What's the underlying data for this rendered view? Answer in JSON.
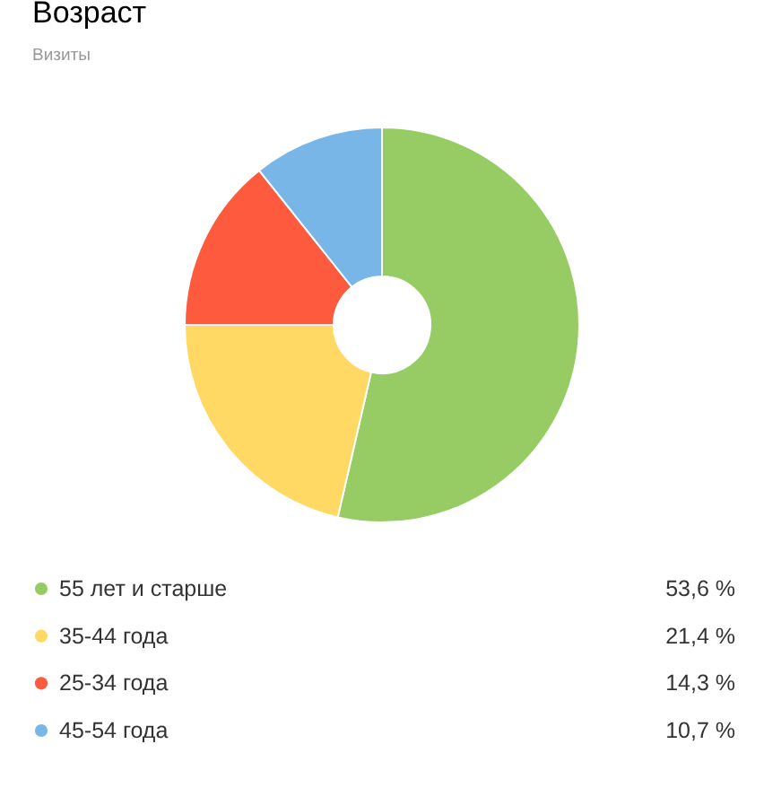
{
  "chart_data": {
    "type": "donut",
    "title": "Возраст",
    "subtitle": "Визиты",
    "categories": [
      "55 лет и старше",
      "35-44 года",
      "25-34 года",
      "45-54 года"
    ],
    "values": [
      53.6,
      21.4,
      14.3,
      10.7
    ],
    "colors": [
      "#97cc64",
      "#ffd963",
      "#fd5a3e",
      "#77b6e7"
    ],
    "value_labels": [
      "53,6 %",
      "21,4 %",
      "14,3 %",
      "10,7 %"
    ],
    "legend": "bottom"
  }
}
